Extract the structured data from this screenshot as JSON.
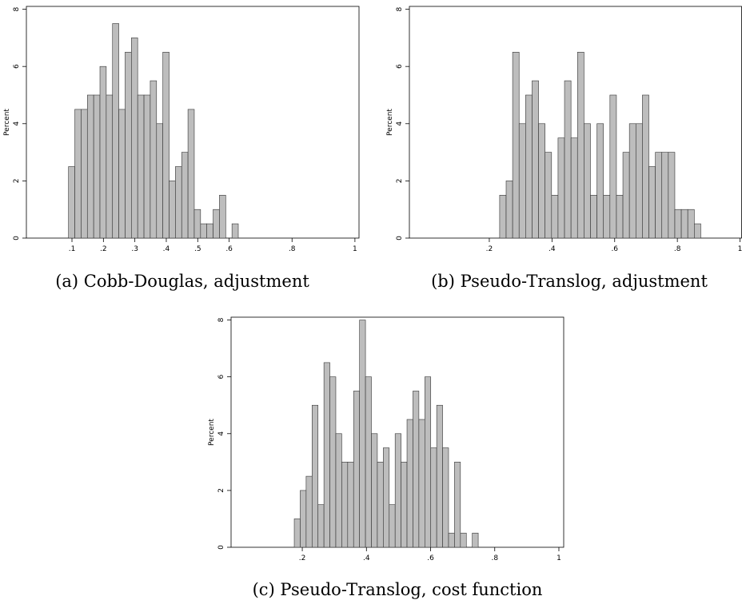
{
  "chart_data": [
    {
      "type": "histogram",
      "title": "(a) Cobb-Douglas, adjustment",
      "ylabel": "Percent",
      "color": "#bdbdbd",
      "bins": [
        0.089,
        0.109,
        0.129,
        0.149,
        0.169,
        0.189,
        0.209,
        0.229,
        0.249,
        0.269,
        0.289,
        0.309,
        0.329,
        0.349,
        0.369,
        0.389,
        0.409,
        0.429,
        0.449,
        0.469,
        0.489,
        0.509,
        0.529,
        0.549,
        0.569,
        0.589,
        0.609,
        0.629
      ],
      "values": [
        2.5,
        4.5,
        4.5,
        5,
        5,
        6,
        5,
        7.5,
        4.5,
        6.5,
        7,
        5,
        5,
        5.5,
        4,
        6.5,
        2,
        2.5,
        3,
        4.5,
        1,
        0.5,
        0.5,
        1,
        1.5,
        0,
        0.5
      ],
      "xlim": [
        -0.045,
        1.013
      ],
      "ylim": [
        0,
        8.1
      ],
      "xticks": [
        {
          "value": 0.1,
          "label": ".1"
        },
        {
          "value": 0.2,
          "label": ".2"
        },
        {
          "value": 0.3,
          "label": ".3"
        },
        {
          "value": 0.4,
          "label": ".4"
        },
        {
          "value": 0.5,
          "label": ".5"
        },
        {
          "value": 0.6,
          "label": ".6"
        },
        {
          "value": 0.8,
          "label": ".8"
        },
        1
      ],
      "yticks": [
        0,
        2,
        4,
        6,
        8
      ]
    },
    {
      "type": "histogram",
      "title": "(b) Pseudo-Translog, adjustment",
      "ylabel": "Percent",
      "color": "#bdbdbd",
      "bins": [
        0.233,
        0.2537,
        0.2744,
        0.2951,
        0.3158,
        0.3365,
        0.3572,
        0.3779,
        0.3986,
        0.4193,
        0.44,
        0.4607,
        0.4814,
        0.5021,
        0.5228,
        0.5435,
        0.5642,
        0.5849,
        0.6056,
        0.6263,
        0.647,
        0.6677,
        0.6884,
        0.7091,
        0.7298,
        0.7505,
        0.7712,
        0.7919,
        0.8126,
        0.8333,
        0.854,
        0.8747
      ],
      "values": [
        1.5,
        2,
        6.5,
        4,
        5,
        5.5,
        4,
        3,
        1.5,
        3.5,
        5.5,
        3.5,
        6.5,
        4,
        1.5,
        4,
        1.5,
        5,
        1.5,
        3,
        4,
        4,
        5,
        2.5,
        3,
        3,
        3,
        1,
        1,
        1,
        0.5
      ],
      "xlim": [
        -0.055,
        1.005
      ],
      "ylim": [
        0,
        8.1
      ],
      "xticks": [
        {
          "value": 0.2,
          "label": ".2"
        },
        {
          "value": 0.4,
          "label": ".4"
        },
        {
          "value": 0.6,
          "label": ".6"
        },
        {
          "value": 0.8,
          "label": ".8"
        },
        1
      ],
      "yticks": [
        0,
        2,
        4,
        6,
        8
      ]
    },
    {
      "type": "histogram",
      "title": "(c) Pseudo-Translog, cost function",
      "ylabel": "Percent",
      "color": "#bdbdbd",
      "bins": [
        0.175,
        0.1935,
        0.212,
        0.2305,
        0.249,
        0.2675,
        0.286,
        0.3045,
        0.323,
        0.3415,
        0.36,
        0.3785,
        0.397,
        0.4155,
        0.434,
        0.4525,
        0.471,
        0.4895,
        0.508,
        0.5265,
        0.545,
        0.5635,
        0.582,
        0.6005,
        0.619,
        0.6375,
        0.656,
        0.6745,
        0.693,
        0.7115,
        0.73,
        0.7485
      ],
      "values": [
        1,
        2,
        2.5,
        5,
        1.5,
        6.5,
        6,
        4,
        3,
        3,
        5.5,
        8,
        6,
        4,
        3,
        3.5,
        1.5,
        4,
        3,
        4.5,
        5.5,
        4.5,
        6,
        3.5,
        5,
        3.5,
        0.5,
        3,
        0.5,
        0,
        0.5
      ],
      "xlim": [
        -0.022,
        1.015
      ],
      "ylim": [
        0,
        8.1
      ],
      "xticks": [
        {
          "value": 0.2,
          "label": ".2"
        },
        {
          "value": 0.4,
          "label": ".4"
        },
        {
          "value": 0.6,
          "label": ".6"
        },
        {
          "value": 0.8,
          "label": ".8"
        },
        1
      ],
      "yticks": [
        0,
        2,
        4,
        6,
        8
      ]
    }
  ]
}
